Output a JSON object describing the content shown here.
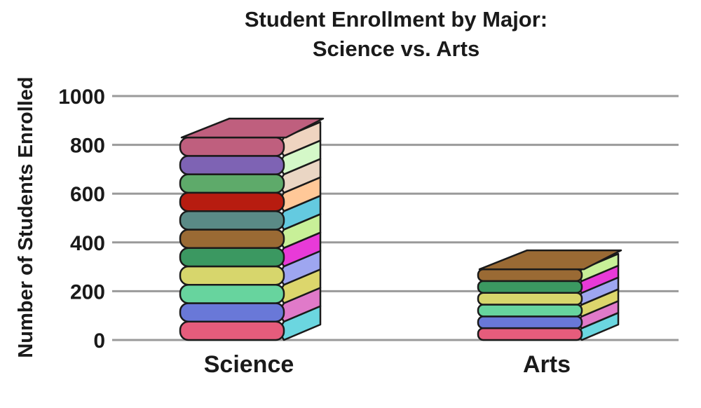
{
  "chart_data": {
    "type": "bar",
    "style": "pictograph-stacked-books",
    "title_lines": [
      "Student Enrollment by Major:",
      "Science vs. Arts"
    ],
    "xlabel": "",
    "ylabel": "Number of Students Enrolled",
    "ylim": [
      0,
      1000
    ],
    "yticks": [
      "0",
      "200",
      "400",
      "600",
      "800",
      "1000"
    ],
    "categories": [
      "Science",
      "Arts"
    ],
    "values": [
      830,
      290
    ],
    "grid": true,
    "legend": "none",
    "book_colors": {
      "Science": {
        "spines": [
          "#e65c7c",
          "#6978d8",
          "#67d49e",
          "#d7d66c",
          "#3b9861",
          "#9a6a34",
          "#5a8a86",
          "#b71c10",
          "#5eaa6a",
          "#7e63b4",
          "#bf5f7e"
        ],
        "pages": [
          "#6bd6e0",
          "#e07ac9",
          "#dcd66c",
          "#9ea6f0",
          "#e83ad8",
          "#c8f098",
          "#64cae0",
          "#ffc898",
          "#ead6c4",
          "#d4f8c8",
          "#efd4c0"
        ]
      },
      "Arts": {
        "spines": [
          "#e65c7c",
          "#6978d8",
          "#67d49e",
          "#d7d66c",
          "#3b9861",
          "#9a6a34"
        ],
        "pages": [
          "#6bd6e0",
          "#e07ac9",
          "#dcd66c",
          "#9ea6f0",
          "#e83ad8",
          "#c8f098"
        ]
      }
    }
  }
}
